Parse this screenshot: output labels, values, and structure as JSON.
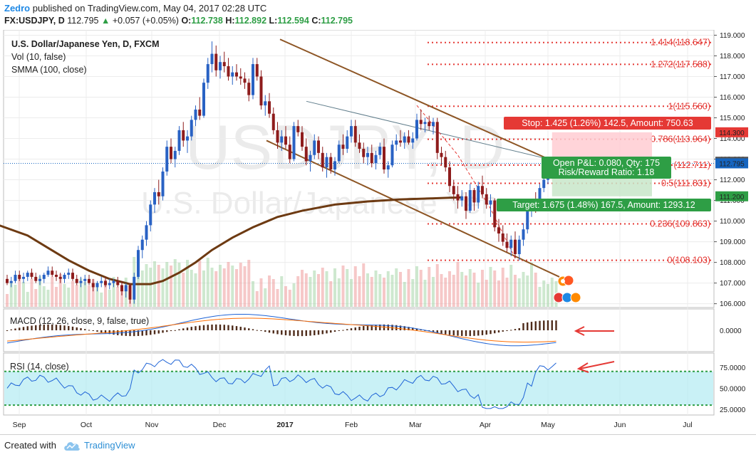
{
  "header": {
    "author": "Zedro",
    "published": "published on TradingView.com, May 04, 2017 02:28 UTC",
    "symbol": "FX:USDJPY, D",
    "last": "112.795",
    "change": "+0.057 (+0.05%)",
    "o_label": "O:",
    "o": "112.738",
    "h_label": "H:",
    "h": "112.892",
    "l_label": "L:",
    "l": "112.594",
    "c_label": "C:",
    "c": "112.795"
  },
  "watermark": {
    "big": "USDJPY, D",
    "small": "U.S. Dollar/Japanese Yen"
  },
  "legend": {
    "title": "U.S. Dollar/Japanese Yen, D, FXCM",
    "vol": "Vol (10, false)",
    "smma": "SMMA (100, close)",
    "macd": "MACD (12, 26, close, 9, false, true)",
    "rsi": "RSI (14, close)"
  },
  "footer": {
    "created_with": "Created with",
    "brand": "TradingView"
  },
  "chart_data": [
    {
      "type": "candlestick",
      "title": "U.S. Dollar/Japanese Yen, D, FXCM",
      "x_ticks": [
        "Sep",
        "Oct",
        "Nov",
        "Dec",
        "2017",
        "Feb",
        "Mar",
        "Apr",
        "May",
        "Jun",
        "Jul"
      ],
      "y_ticks": [
        "119.000",
        "118.000",
        "117.000",
        "116.000",
        "115.000",
        "114.000",
        "113.000",
        "112.000",
        "111.000",
        "110.000",
        "109.000",
        "108.000",
        "107.000",
        "106.000"
      ],
      "ylim": [
        105.85,
        119.05
      ],
      "price_tags": [
        {
          "label": "114.300",
          "value": 114.3,
          "color": "#e53935"
        },
        {
          "label": "112.875",
          "value": 112.875,
          "color": "#555555"
        },
        {
          "label": "112.795",
          "value": 112.795,
          "color": "#1565c0"
        },
        {
          "label": "111.200",
          "value": 111.2,
          "color": "#2e9e45"
        }
      ],
      "fib_levels": [
        {
          "label": "1.414(118.647)",
          "value": 118.647
        },
        {
          "label": "1.272(117.588)",
          "value": 117.588
        },
        {
          "label": "1(115.560)",
          "value": 115.56
        },
        {
          "label": "0.786(113.964)",
          "value": 113.964
        },
        {
          "label": "(112.711)",
          "value": 112.711
        },
        {
          "label": "0.5(111.831)",
          "value": 111.831
        },
        {
          "label": "0.236(109.863)",
          "value": 109.863
        },
        {
          "label": "0(108.103)",
          "value": 108.103
        }
      ],
      "position": {
        "stop": "Stop: 1.425 (1.26%) 142.5, Amount: 750.63",
        "open": "Open P&L: 0.080, Qty: 175",
        "rr": "Risk/Reward Ratio: 1.18",
        "target": "Target: 1.675 (1.48%) 167.5, Amount: 1293.12",
        "entry": 112.875,
        "stop_price": 114.3,
        "target_price": 111.2
      },
      "smma": [
        [
          -2,
          109.8
        ],
        [
          5,
          109.3
        ],
        [
          10,
          108.7
        ],
        [
          15,
          108.1
        ],
        [
          20,
          107.6
        ],
        [
          25,
          107.2
        ],
        [
          30,
          106.95
        ],
        [
          35,
          106.95
        ],
        [
          38,
          107.1
        ],
        [
          42,
          107.5
        ],
        [
          46,
          108.0
        ],
        [
          50,
          108.6
        ],
        [
          55,
          109.2
        ],
        [
          60,
          109.7
        ],
        [
          66,
          110.2
        ],
        [
          72,
          110.5
        ],
        [
          80,
          110.8
        ],
        [
          88,
          110.95
        ],
        [
          96,
          111.05
        ],
        [
          104,
          111.1
        ],
        [
          111,
          111.15
        ]
      ],
      "candles": [
        [
          0,
          107.2,
          107.4,
          106.9,
          107.0
        ],
        [
          1,
          107.0,
          107.3,
          106.8,
          107.1
        ],
        [
          2,
          107.1,
          107.6,
          107.0,
          107.4
        ],
        [
          3,
          107.4,
          107.6,
          107.1,
          107.2
        ],
        [
          4,
          107.2,
          107.5,
          107.0,
          107.3
        ],
        [
          5,
          107.3,
          107.6,
          107.1,
          107.5
        ],
        [
          6,
          107.5,
          107.7,
          107.2,
          107.3
        ],
        [
          7,
          107.3,
          107.5,
          107.0,
          107.1
        ],
        [
          8,
          107.1,
          107.4,
          106.9,
          107.2
        ],
        [
          9,
          107.2,
          107.5,
          107.0,
          107.4
        ],
        [
          10,
          107.4,
          107.8,
          107.3,
          107.6
        ],
        [
          11,
          107.6,
          107.8,
          107.3,
          107.4
        ],
        [
          12,
          107.4,
          107.6,
          107.1,
          107.3
        ],
        [
          13,
          107.3,
          107.5,
          107.0,
          107.2
        ],
        [
          14,
          107.2,
          107.5,
          107.0,
          107.4
        ],
        [
          15,
          107.4,
          107.7,
          107.2,
          107.5
        ],
        [
          16,
          107.5,
          107.7,
          107.1,
          107.2
        ],
        [
          17,
          107.2,
          107.4,
          106.9,
          107.0
        ],
        [
          18,
          107.0,
          107.3,
          106.8,
          107.1
        ],
        [
          19,
          107.1,
          107.4,
          106.9,
          107.2
        ],
        [
          20,
          107.2,
          107.4,
          106.9,
          107.0
        ],
        [
          21,
          107.0,
          107.2,
          106.6,
          106.8
        ],
        [
          22,
          106.8,
          107.1,
          106.6,
          107.0
        ],
        [
          23,
          107.0,
          107.3,
          106.8,
          107.1
        ],
        [
          24,
          107.1,
          107.3,
          106.8,
          106.9
        ],
        [
          25,
          106.9,
          107.2,
          106.7,
          107.0
        ],
        [
          26,
          107.0,
          107.2,
          106.8,
          107.1
        ],
        [
          27,
          107.1,
          107.3,
          106.8,
          106.9
        ],
        [
          28,
          106.9,
          107.1,
          106.4,
          106.6
        ],
        [
          29,
          106.6,
          107.0,
          106.3,
          106.9
        ],
        [
          30,
          106.9,
          107.0,
          106.0,
          106.2
        ],
        [
          31,
          106.2,
          107.5,
          106.0,
          107.3
        ],
        [
          32,
          107.3,
          108.8,
          107.2,
          108.6
        ],
        [
          33,
          108.6,
          109.3,
          108.2,
          109.1
        ],
        [
          34,
          109.1,
          110.0,
          108.8,
          109.8
        ],
        [
          35,
          109.8,
          111.0,
          109.5,
          110.8
        ],
        [
          36,
          110.8,
          111.6,
          110.4,
          111.4
        ],
        [
          37,
          111.4,
          112.0,
          110.8,
          111.2
        ],
        [
          38,
          111.2,
          112.6,
          111.0,
          112.4
        ],
        [
          39,
          112.4,
          113.9,
          112.2,
          113.6
        ],
        [
          40,
          113.6,
          114.0,
          112.8,
          113.0
        ],
        [
          41,
          113.0,
          113.6,
          112.6,
          113.4
        ],
        [
          42,
          113.4,
          114.6,
          113.2,
          114.4
        ],
        [
          43,
          114.4,
          114.8,
          113.6,
          113.9
        ],
        [
          44,
          113.9,
          114.4,
          113.3,
          114.1
        ],
        [
          45,
          114.1,
          115.1,
          113.9,
          114.9
        ],
        [
          46,
          114.9,
          115.6,
          114.6,
          115.4
        ],
        [
          47,
          115.4,
          116.0,
          114.9,
          115.1
        ],
        [
          48,
          115.1,
          116.9,
          115.0,
          116.7
        ],
        [
          49,
          116.7,
          117.9,
          116.4,
          117.6
        ],
        [
          50,
          117.6,
          118.7,
          117.2,
          118.1
        ],
        [
          51,
          118.1,
          118.5,
          117.0,
          117.3
        ],
        [
          52,
          117.3,
          118.0,
          116.9,
          117.7
        ],
        [
          53,
          117.7,
          118.2,
          117.2,
          117.5
        ],
        [
          54,
          117.5,
          117.9,
          116.8,
          117.0
        ],
        [
          55,
          117.0,
          117.5,
          116.6,
          117.2
        ],
        [
          56,
          117.2,
          117.6,
          116.8,
          117.0
        ],
        [
          57,
          117.0,
          117.4,
          116.6,
          116.9
        ],
        [
          58,
          116.9,
          117.2,
          116.4,
          116.7
        ],
        [
          59,
          116.7,
          116.9,
          115.8,
          116.1
        ],
        [
          60,
          116.1,
          117.9,
          115.9,
          117.6
        ],
        [
          61,
          117.6,
          117.9,
          116.8,
          117.0
        ],
        [
          62,
          117.0,
          117.3,
          115.4,
          115.6
        ],
        [
          63,
          115.6,
          116.1,
          115.1,
          115.8
        ],
        [
          64,
          115.8,
          116.2,
          115.0,
          115.2
        ],
        [
          65,
          115.2,
          115.5,
          114.2,
          114.4
        ],
        [
          66,
          114.4,
          114.8,
          113.5,
          113.8
        ],
        [
          67,
          113.8,
          114.4,
          113.4,
          114.1
        ],
        [
          68,
          114.1,
          114.6,
          113.5,
          113.7
        ],
        [
          69,
          113.7,
          114.1,
          112.8,
          113.0
        ],
        [
          70,
          113.0,
          114.8,
          112.9,
          114.6
        ],
        [
          71,
          114.6,
          114.9,
          114.1,
          114.3
        ],
        [
          72,
          114.3,
          114.6,
          113.4,
          113.6
        ],
        [
          73,
          113.6,
          114.0,
          112.7,
          112.9
        ],
        [
          74,
          112.9,
          113.4,
          112.4,
          113.2
        ],
        [
          75,
          113.2,
          114.2,
          113.0,
          113.9
        ],
        [
          76,
          113.9,
          114.1,
          113.0,
          113.3
        ],
        [
          77,
          113.3,
          113.6,
          112.4,
          112.6
        ],
        [
          78,
          112.6,
          113.3,
          112.1,
          113.1
        ],
        [
          79,
          113.1,
          113.3,
          112.3,
          112.5
        ],
        [
          80,
          112.5,
          113.1,
          112.2,
          112.9
        ],
        [
          81,
          112.9,
          113.9,
          112.8,
          113.7
        ],
        [
          82,
          113.7,
          114.2,
          113.2,
          113.5
        ],
        [
          83,
          113.5,
          114.4,
          113.3,
          114.1
        ],
        [
          84,
          114.1,
          114.9,
          113.8,
          114.6
        ],
        [
          85,
          114.6,
          114.9,
          113.6,
          113.8
        ],
        [
          86,
          113.8,
          114.2,
          113.3,
          113.5
        ],
        [
          87,
          113.5,
          113.8,
          112.8,
          113.1
        ],
        [
          88,
          113.1,
          113.6,
          112.7,
          113.3
        ],
        [
          89,
          113.3,
          113.7,
          112.6,
          112.8
        ],
        [
          90,
          112.8,
          113.4,
          112.5,
          113.2
        ],
        [
          91,
          113.2,
          113.8,
          113.0,
          113.6
        ],
        [
          92,
          113.6,
          114.0,
          112.3,
          112.5
        ],
        [
          93,
          112.5,
          112.9,
          112.1,
          112.7
        ],
        [
          94,
          112.7,
          113.9,
          112.6,
          113.7
        ],
        [
          95,
          113.7,
          114.2,
          113.4,
          113.9
        ],
        [
          96,
          113.9,
          114.4,
          113.6,
          113.8
        ],
        [
          97,
          113.8,
          114.3,
          113.5,
          114.1
        ],
        [
          98,
          114.1,
          114.4,
          113.7,
          113.8
        ],
        [
          99,
          113.8,
          114.3,
          113.5,
          114.0
        ],
        [
          100,
          114.0,
          115.2,
          113.9,
          114.9
        ],
        [
          101,
          114.9,
          115.4,
          114.4,
          114.7
        ],
        [
          102,
          114.7,
          115.0,
          114.3,
          114.8
        ],
        [
          103,
          114.8,
          115.1,
          114.4,
          114.6
        ],
        [
          104,
          114.6,
          115.0,
          114.2,
          114.8
        ],
        [
          105,
          114.8,
          115.0,
          113.0,
          113.3
        ],
        [
          106,
          113.3,
          113.6,
          112.7,
          113.1
        ],
        [
          107,
          113.1,
          113.4,
          112.4,
          112.6
        ],
        [
          108,
          112.6,
          112.9,
          111.4,
          111.7
        ],
        [
          109,
          111.7,
          112.0,
          111.0,
          111.3
        ],
        [
          110,
          111.3,
          111.7,
          110.6,
          111.0
        ],
        [
          111,
          111.0,
          111.5,
          110.7,
          111.2
        ],
        [
          112,
          111.2,
          111.4,
          110.1,
          110.5
        ],
        [
          113,
          110.5,
          111.8,
          110.4,
          111.5
        ],
        [
          114,
          111.5,
          111.6,
          110.5,
          110.9
        ],
        [
          115,
          110.9,
          111.9,
          110.6,
          111.7
        ],
        [
          116,
          111.7,
          112.2,
          111.1,
          111.3
        ],
        [
          117,
          111.3,
          111.6,
          110.6,
          110.8
        ],
        [
          118,
          110.8,
          111.3,
          110.2,
          111.0
        ],
        [
          119,
          111.0,
          111.1,
          109.5,
          109.7
        ],
        [
          120,
          109.7,
          110.1,
          109.0,
          109.4
        ],
        [
          121,
          109.4,
          109.8,
          108.8,
          109.0
        ],
        [
          122,
          109.0,
          109.4,
          108.5,
          108.7
        ],
        [
          123,
          108.7,
          109.3,
          108.3,
          109.1
        ],
        [
          124,
          109.1,
          109.5,
          108.2,
          108.4
        ],
        [
          125,
          108.4,
          109.3,
          108.1,
          109.1
        ],
        [
          126,
          109.1,
          109.9,
          108.8,
          109.6
        ],
        [
          127,
          109.6,
          110.7,
          109.4,
          110.5
        ],
        [
          128,
          110.5,
          111.0,
          110.2,
          110.8
        ],
        [
          129,
          110.8,
          111.4,
          110.4,
          110.6
        ],
        [
          130,
          110.6,
          111.8,
          110.5,
          111.6
        ],
        [
          131,
          111.6,
          112.2,
          111.4,
          112.0
        ],
        [
          132,
          112.0,
          112.5,
          111.8,
          112.3
        ],
        [
          133,
          112.3,
          112.9,
          112.2,
          112.8
        ],
        [
          134,
          112.7,
          112.9,
          112.6,
          112.8
        ]
      ]
    },
    {
      "type": "bar",
      "title": "Vol (10, false)"
    },
    {
      "type": "line",
      "title": "MACD (12, 26, close, 9, false, true)",
      "y_ticks": [
        "0.0000"
      ],
      "ylim": [
        -1.2,
        1.2
      ]
    },
    {
      "type": "line",
      "title": "RSI (14, close)",
      "y_ticks": [
        "75.0000",
        "50.0000",
        "25.0000"
      ],
      "ylim": [
        20,
        90
      ],
      "bands": [
        30,
        70
      ]
    }
  ]
}
